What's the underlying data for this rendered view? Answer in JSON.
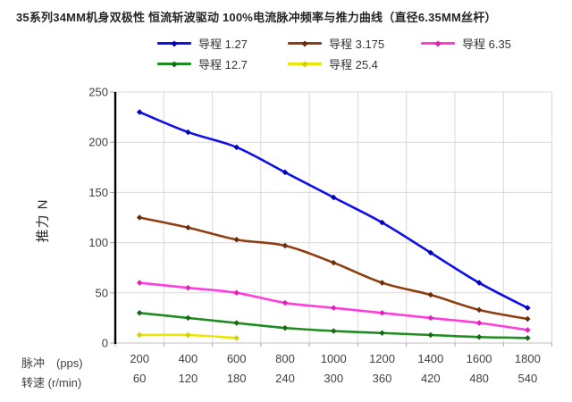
{
  "title": "35系列34MM机身双极性 恒流斩波驱动 100%电流脉冲频率与推力曲线（直径6.35MM丝杆）",
  "chart_data": {
    "type": "line",
    "title": "35系列34MM机身双极性 恒流斩波驱动 100%电流脉冲频率与推力曲线（直径6.35MM丝杆）",
    "categories_pps": [
      200,
      400,
      600,
      800,
      1000,
      1200,
      1400,
      1600,
      1800
    ],
    "categories_rpm": [
      60,
      120,
      180,
      240,
      300,
      360,
      420,
      480,
      540
    ],
    "x_axis_row_labels": {
      "row1": "脉冲　(pps)",
      "row2": "转速 (r/min)"
    },
    "ylabel": "推力 N",
    "ylim": [
      0,
      250
    ],
    "ytick_interval": 50,
    "grid": true,
    "legend_position": "top",
    "colors": {
      "gridline": "#d9d9d9",
      "y_axis_line": "#000000",
      "x_axis_line": "#c0c0c0",
      "tick": "#a6a6a6",
      "tick_label": "#404040",
      "title_text": "#262626"
    },
    "series": [
      {
        "name": "导程 1.27",
        "color": "#0f0fe8",
        "marker_color": "#0000b4",
        "values": [
          230,
          210,
          195,
          170,
          145,
          120,
          90,
          60,
          35
        ]
      },
      {
        "name": "导程 3.175",
        "color": "#8f3e0f",
        "marker_color": "#6b2d0b",
        "values": [
          125,
          115,
          103,
          97,
          80,
          60,
          48,
          33,
          24
        ]
      },
      {
        "name": "导程  6.35",
        "color": "#ff3cdc",
        "marker_color": "#e020b8",
        "values": [
          60,
          55,
          50,
          40,
          35,
          30,
          25,
          20,
          13
        ]
      },
      {
        "name": "导程  12.7",
        "color": "#1f8c1f",
        "marker_color": "#156b15",
        "values": [
          30,
          25,
          20,
          15,
          12,
          10,
          8,
          6,
          5
        ]
      },
      {
        "name": "导程  25.4",
        "color": "#ebe600",
        "marker_color": "#d6cf00",
        "values": [
          8,
          8,
          5,
          null,
          null,
          null,
          null,
          null,
          null
        ]
      }
    ]
  }
}
